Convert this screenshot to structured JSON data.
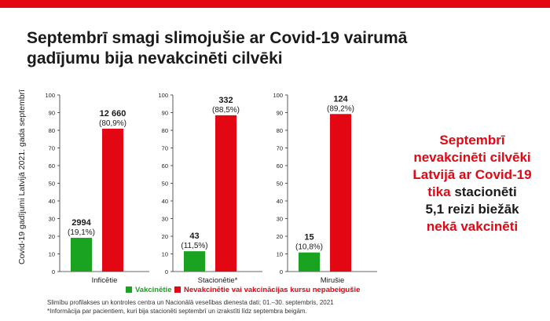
{
  "title": "Septembrī smagi slimojušie ar Covid-19 vairumā gadījumu bija nevakcinēti cilvēki",
  "colors": {
    "vaccinated": "#1aa321",
    "unvaccinated": "#e30613",
    "accent": "#e30613"
  },
  "chart_data": {
    "type": "bar",
    "ylabel": "Covid-19 gadījumi Latvijā 2021. gada septembrī",
    "ylim": [
      0,
      100
    ],
    "yticks": [
      0,
      10,
      20,
      30,
      40,
      50,
      60,
      70,
      80,
      90,
      100
    ],
    "grid": false,
    "legend_position": "bottom",
    "series": [
      {
        "name": "Vakcinētie",
        "values": [
          19.1,
          11.5,
          10.8
        ]
      },
      {
        "name": "Nevakcinētie vai vakcinācijas kursu nepabeigušie",
        "values": [
          80.9,
          88.5,
          89.2
        ]
      }
    ],
    "panels": [
      {
        "category": "Inficētie",
        "bars": [
          {
            "series": "Vakcinētie",
            "value": 19.1,
            "count": "2994",
            "pct": "(19,1%)"
          },
          {
            "series": "Nevakcinētie vai vakcinācijas kursu nepabeigušie",
            "value": 80.9,
            "count": "12 660",
            "pct": "(80,9%)"
          }
        ]
      },
      {
        "category": "Stacionētie*",
        "bars": [
          {
            "series": "Vakcinētie",
            "value": 11.5,
            "count": "43",
            "pct": "(11,5%)"
          },
          {
            "series": "Nevakcinētie vai vakcinācijas kursu nepabeigušie",
            "value": 88.5,
            "count": "332",
            "pct": "(88,5%)"
          }
        ]
      },
      {
        "category": "Mirušie",
        "bars": [
          {
            "series": "Vakcinētie",
            "value": 10.8,
            "count": "15",
            "pct": "(10,8%)"
          },
          {
            "series": "Nevakcinētie vai vakcinācijas kursu nepabeigušie",
            "value": 89.2,
            "count": "124",
            "pct": "(89,2%)"
          }
        ]
      }
    ]
  },
  "legend": {
    "vaccinated": "Vakcinētie",
    "unvaccinated": "Nevakcinētie vai vakcinācijas kursu nepabeigušie"
  },
  "source": {
    "line1": "Slimību profilakses un kontroles centra un Nacionālā veselības dienesta dati; 01.–30. septembris, 2021",
    "line2": "*Informācija par pacientiem, kuri bija stacionēti septembrī un izrakstīti līdz septembra beigām."
  },
  "side_text": {
    "line1": "Septembrī",
    "line2": "nevakcinēti cilvēki",
    "line3": "Latvijā ar Covid-19",
    "line4a": "tika",
    "line4b": " stacionēti",
    "line5": "5,1 reizi biežāk",
    "line6": "nekā vakcinēti"
  }
}
